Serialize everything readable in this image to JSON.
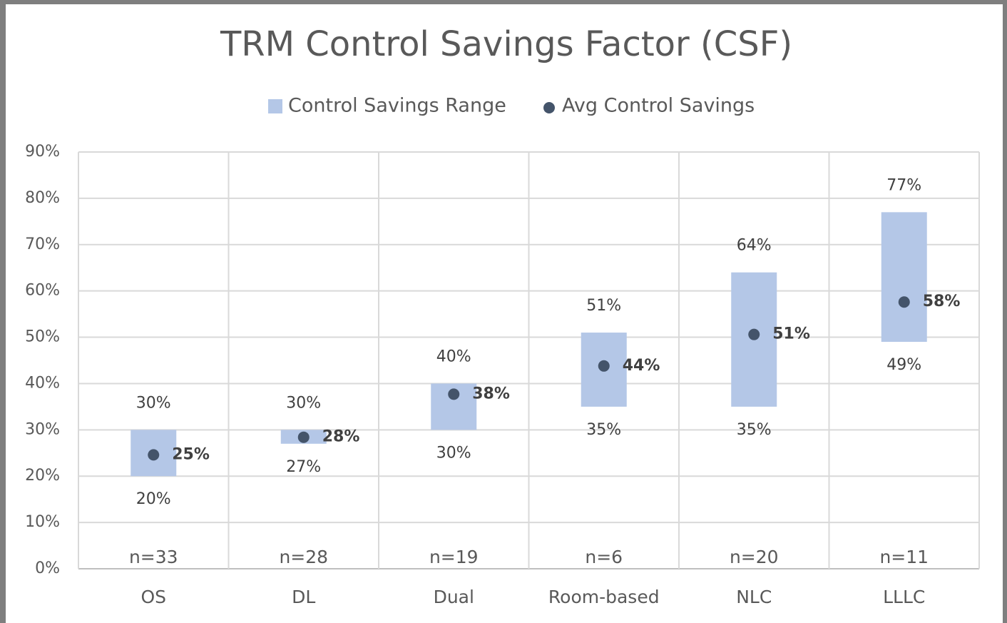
{
  "chart_data": {
    "type": "floating-bar-dot",
    "title": "TRM Control Savings Factor (CSF)",
    "categories": [
      "OS",
      "DL",
      "Dual",
      "Room-based",
      "NLC",
      "LLLC"
    ],
    "count_labels": [
      "n=33",
      "n=28",
      "n=19",
      "n=6",
      "n=20",
      "n=11"
    ],
    "series": [
      {
        "name": "Control Savings Range",
        "color": "#b4c7e7",
        "low": [
          20,
          27,
          30,
          35,
          35,
          49
        ],
        "high": [
          30,
          30,
          40,
          51,
          64,
          77
        ],
        "low_labels": [
          "20%",
          "27%",
          "30%",
          "35%",
          "35%",
          "49%"
        ],
        "high_labels": [
          "30%",
          "30%",
          "40%",
          "51%",
          "64%",
          "77%"
        ]
      },
      {
        "name": "Avg Control Savings",
        "color": "#44546a",
        "values": [
          24.6,
          28.4,
          37.7,
          43.8,
          50.6,
          57.6
        ],
        "value_labels": [
          "25%",
          "28%",
          "38%",
          "44%",
          "51%",
          "58%"
        ]
      }
    ],
    "ylim": [
      0,
      90
    ],
    "yticks": [
      {
        "value": 0,
        "label": "0%"
      },
      {
        "value": 10,
        "label": "10%"
      },
      {
        "value": 20,
        "label": "20%"
      },
      {
        "value": 30,
        "label": "30%"
      },
      {
        "value": 40,
        "label": "40%"
      },
      {
        "value": 50,
        "label": "50%"
      },
      {
        "value": 60,
        "label": "60%"
      },
      {
        "value": 70,
        "label": "70%"
      },
      {
        "value": 80,
        "label": "80%"
      },
      {
        "value": 90,
        "label": "90%"
      }
    ],
    "grid": true,
    "legend": "top"
  }
}
